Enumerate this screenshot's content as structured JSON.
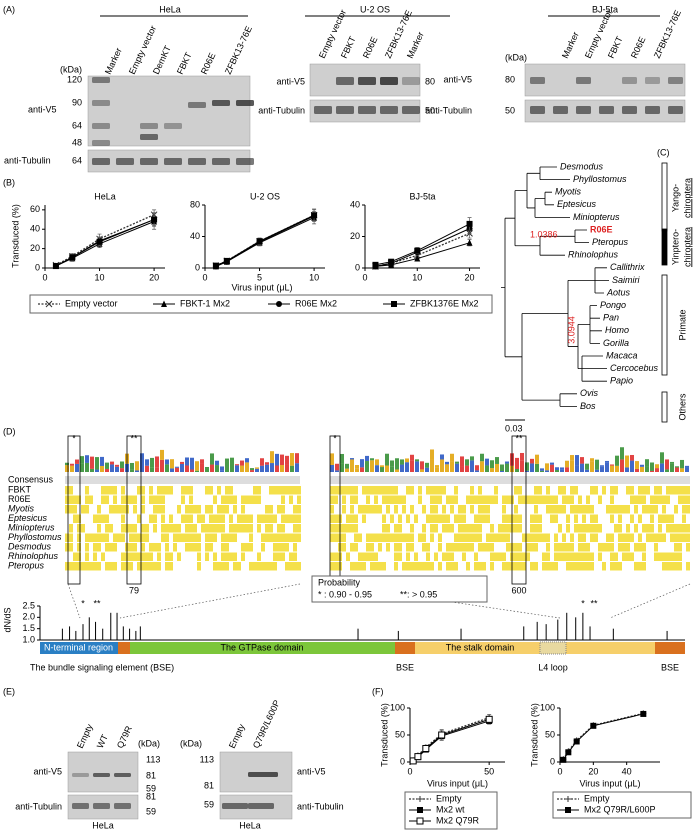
{
  "panel_a": {
    "label": "(A)",
    "hela": {
      "title": "HeLa",
      "lanes": [
        "Marker",
        "Empty vector",
        "DemKT",
        "FBKT",
        "R06E",
        "ZFBK13-76E"
      ],
      "kda_unit": "(kDa)",
      "kda": [
        120,
        90,
        64,
        48
      ],
      "kda_tub": 64,
      "v5": "anti-V5",
      "tub": "anti-Tubulin"
    },
    "u2os": {
      "title": "U-2 OS",
      "lanes": [
        "Empty vector",
        "FBKT",
        "R06E",
        "ZFBK13-76E",
        "Marker"
      ],
      "v5": "anti-V5",
      "tub": "anti-Tubulin",
      "kda_v5": 80,
      "kda_tub": 50
    },
    "bj": {
      "title": "BJ-5ta",
      "lanes": [
        "Marker",
        "Empty vector",
        "FBKT",
        "R06E",
        "ZFBK13-76E"
      ],
      "kda_unit": "(kDa)",
      "v5": "anti-V5",
      "tub": "anti-Tubulin",
      "kda_v5": 80,
      "kda_tub": 50
    }
  },
  "panel_b": {
    "label": "(B)",
    "y_label": "Transduced (%)",
    "x_label": "Virus input (μL)",
    "charts": [
      {
        "type": "line",
        "title": "HeLa",
        "x": [
          2,
          5,
          10,
          20
        ],
        "xlim": [
          0,
          22
        ],
        "xticks": [
          0,
          10,
          20
        ],
        "ylim": [
          0,
          65
        ],
        "yticks": [
          0,
          20,
          40,
          60
        ],
        "series": [
          {
            "name": "Empty vector",
            "color": "#333333",
            "marker": "x",
            "dash": true,
            "values": [
              3,
              12,
              30,
              55
            ],
            "errors": [
              1,
              3,
              5,
              5
            ]
          },
          {
            "name": "FBKT-1 Mx2",
            "color": "#000000",
            "marker": "triangle",
            "values": [
              2,
              10,
              25,
              48
            ],
            "errors": [
              1,
              3,
              4,
              8
            ]
          },
          {
            "name": "R06E Mx2",
            "color": "#000000",
            "marker": "circle",
            "values": [
              2,
              11,
              28,
              50
            ],
            "errors": [
              1,
              3,
              4,
              6
            ]
          },
          {
            "name": "ZFBK1376E Mx2",
            "color": "#000000",
            "marker": "square",
            "values": [
              2,
              11,
              27,
              50
            ],
            "errors": [
              1,
              3,
              4,
              7
            ]
          }
        ]
      },
      {
        "type": "line",
        "title": "U-2 OS",
        "x": [
          1,
          2,
          5,
          10
        ],
        "xlim": [
          0,
          11
        ],
        "xticks": [
          0,
          5,
          10
        ],
        "ylim": [
          0,
          80
        ],
        "yticks": [
          0,
          40,
          80
        ],
        "series": [
          {
            "name": "Empty vector",
            "color": "#333333",
            "marker": "x",
            "dash": true,
            "values": [
              3,
              9,
              34,
              67
            ],
            "errors": [
              1,
              2,
              4,
              8
            ]
          },
          {
            "name": "FBKT-1 Mx2",
            "color": "#000000",
            "marker": "triangle",
            "values": [
              2,
              8,
              32,
              64
            ],
            "errors": [
              1,
              2,
              4,
              8
            ]
          },
          {
            "name": "R06E Mx2",
            "color": "#000000",
            "marker": "circle",
            "values": [
              2,
              8,
              33,
              66
            ],
            "errors": [
              1,
              2,
              4,
              6
            ]
          },
          {
            "name": "ZFBK1376E Mx2",
            "color": "#000000",
            "marker": "square",
            "values": [
              3,
              9,
              34,
              67
            ],
            "errors": [
              1,
              2,
              4,
              7
            ]
          }
        ]
      },
      {
        "type": "line",
        "title": "BJ-5ta",
        "x": [
          2,
          5,
          10,
          20
        ],
        "xlim": [
          0,
          22
        ],
        "xticks": [
          0,
          10,
          20
        ],
        "ylim": [
          0,
          40
        ],
        "yticks": [
          0,
          20,
          40
        ],
        "series": [
          {
            "name": "Empty vector",
            "color": "#333333",
            "marker": "x",
            "dash": true,
            "values": [
              1,
              3,
              8,
              22
            ],
            "errors": [
              0.5,
              1,
              2,
              3
            ]
          },
          {
            "name": "FBKT-1 Mx2",
            "color": "#000000",
            "marker": "triangle",
            "values": [
              1,
              2,
              6,
              16
            ],
            "errors": [
              0.5,
              1,
              1,
              2
            ]
          },
          {
            "name": "R06E Mx2",
            "color": "#000000",
            "marker": "circle",
            "values": [
              1,
              3,
              10,
              25
            ],
            "errors": [
              0.5,
              1,
              2,
              3
            ]
          },
          {
            "name": "ZFBK1376E Mx2",
            "color": "#000000",
            "marker": "square",
            "values": [
              2,
              4,
              11,
              28
            ],
            "errors": [
              0.5,
              1,
              2,
              4
            ]
          }
        ]
      }
    ]
  },
  "panel_c": {
    "label": "(C)",
    "taxa": [
      "Desmodus",
      "Phyllostomus",
      "Myotis",
      "Eptesicus",
      "Miniopterus",
      "R06E",
      "Pteropus",
      "Rhinolophus",
      "Callithrix",
      "Saimiri",
      "Aotus",
      "Pongo",
      "Pan",
      "Homo",
      "Gorilla",
      "Macaca",
      "Cercocebus",
      "Papio",
      "Ovis",
      "Bos"
    ],
    "groups": [
      {
        "lines": [
          "Yango-",
          "chiroptera"
        ]
      },
      {
        "lines": [
          "Yinptero-",
          "chiroptera"
        ]
      },
      {
        "lines": [
          "Primate"
        ]
      },
      {
        "lines": [
          "Others"
        ]
      }
    ],
    "node_values": [
      1.0386,
      3.0944
    ],
    "scale": 0.03
  },
  "panel_d": {
    "label": "(D)",
    "consensus": "Consensus",
    "rows": [
      "FBKT",
      "R06E",
      "Myotis",
      "Eptesicus",
      "Miniopterus",
      "Phyllostomus",
      "Desmodus",
      "Rhinolophus",
      "Pteropus"
    ],
    "positions": [
      79,
      600
    ],
    "align_stars": [
      "*",
      "**",
      "*",
      "**"
    ],
    "probability": {
      "title": "Probability",
      "lines": [
        "* : 0.90 - 0.95",
        "**: > 0.95"
      ]
    },
    "dnds": {
      "type": "stem",
      "y_label": "dN/dS",
      "stars": [
        "*",
        "**",
        "*",
        "**"
      ],
      "x": [
        25,
        33,
        40,
        48,
        55,
        62,
        70,
        79,
        86,
        93,
        100,
        107,
        112,
        355,
        400,
        470,
        540,
        555,
        565,
        578,
        588,
        598,
        606,
        614,
        640,
        700
      ],
      "values": [
        1.5,
        1.6,
        1.4,
        1.7,
        2.0,
        1.8,
        1.5,
        2.2,
        2.2,
        1.6,
        1.5,
        1.4,
        1.6,
        1.5,
        1.4,
        1.5,
        1.6,
        1.8,
        1.7,
        1.9,
        2.2,
        2.0,
        2.2,
        1.6,
        1.5,
        1.4
      ],
      "xlim": [
        0,
        720
      ],
      "ylim": [
        1,
        2.5
      ],
      "yticks": [
        {
          "value": 1,
          "label": "1.0"
        },
        1.5,
        {
          "value": 2,
          "label": "2.0"
        },
        2.5
      ]
    },
    "domains": [
      "N-terminal region",
      "The GTPase domain",
      "The stalk domain"
    ],
    "l4": "L4 loop",
    "bse": [
      "The bundle signaling element (BSE)",
      "BSE",
      "BSE"
    ]
  },
  "panel_e": {
    "label": "(E)",
    "blot1": {
      "lanes": [
        "Empty",
        "WT",
        "Q79R"
      ],
      "kda_unit": "(kDa)",
      "kda": [
        113,
        81,
        59,
        81,
        59
      ],
      "v5": "anti-V5",
      "tub": "anti-Tubulin",
      "cell": "HeLa"
    },
    "blot2": {
      "lanes": [
        "Empty",
        "Q79R/L600P"
      ],
      "kda_unit": "(kDa)",
      "kda": [
        113,
        81,
        59
      ],
      "v5": "anti-V5",
      "tub": "anti-Tubulin",
      "cell": "HeLa"
    }
  },
  "panel_f": {
    "label": "(F)",
    "y_label": "Transduced (%)",
    "x_label": "Virus input (μL)",
    "charts": [
      {
        "type": "line",
        "x": [
          2,
          5,
          10,
          20,
          50
        ],
        "xlim": [
          0,
          60
        ],
        "xticks": [
          0,
          50
        ],
        "ylim": [
          0,
          100
        ],
        "yticks": [
          0,
          50,
          100
        ],
        "series": [
          {
            "name": "Empty",
            "color": "#333333",
            "marker": "plus",
            "dash": true,
            "values": [
              3,
              12,
              27,
              52,
              82
            ],
            "errors": [
              1,
              2,
              4,
              8,
              6
            ]
          },
          {
            "name": "Mx2 wt",
            "color": "#000000",
            "marker": "square",
            "values": [
              2,
              9,
              23,
              48,
              76
            ],
            "errors": [
              1,
              2,
              4,
              8,
              6
            ]
          },
          {
            "name": "Mx2 Q79R",
            "color": "#000000",
            "marker": "square-open",
            "values": [
              2,
              10,
              25,
              50,
              79
            ],
            "errors": [
              1,
              2,
              4,
              8,
              6
            ]
          }
        ]
      },
      {
        "type": "line",
        "x": [
          2,
          5,
          10,
          20,
          50
        ],
        "xlim": [
          0,
          60
        ],
        "xticks": [
          0,
          20,
          40
        ],
        "ylim": [
          0,
          100
        ],
        "yticks": [
          0,
          50,
          100
        ],
        "series": [
          {
            "name": "Empty",
            "color": "#333333",
            "marker": "plus",
            "dash": true,
            "values": [
              5,
              20,
              40,
              68,
              90
            ],
            "errors": [
              1,
              2,
              3,
              3,
              2
            ]
          },
          {
            "name": "Mx2 Q79R/L600P",
            "color": "#000000",
            "marker": "square",
            "values": [
              4,
              18,
              38,
              67,
              89
            ],
            "errors": [
              1,
              2,
              3,
              3,
              2
            ]
          }
        ]
      }
    ]
  }
}
